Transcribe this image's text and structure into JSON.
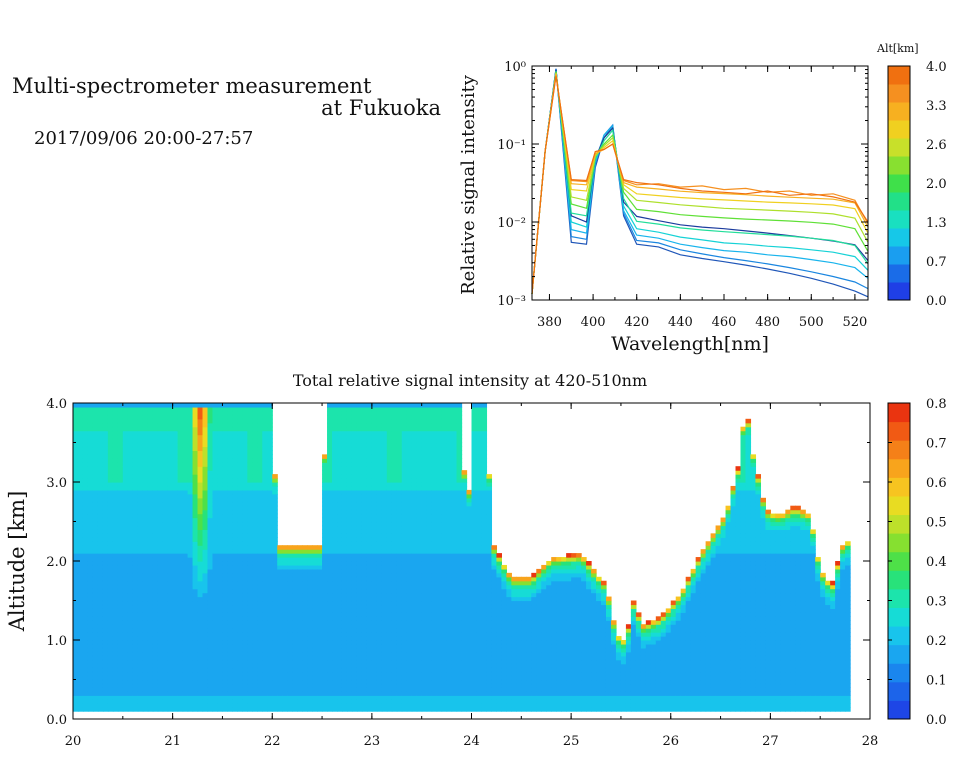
{
  "header": {
    "title_line1": "Multi-spectrometer measurement",
    "title_line2": "at Fukuoka",
    "datetime": "2017/09/06 20:00-27:57"
  },
  "chart_data": [
    {
      "type": "line",
      "title": "",
      "xlabel": "Wavelength[nm]",
      "ylabel": "Relative signal intensity",
      "xlim": [
        372,
        526
      ],
      "ylim": [
        0.001,
        1
      ],
      "yscale": "log",
      "xticks": [
        380,
        400,
        420,
        440,
        460,
        480,
        500,
        520
      ],
      "yticks": [
        {
          "value": 0.001,
          "label": "10⁻³"
        },
        {
          "value": 0.01,
          "label": "10⁻²"
        },
        {
          "value": 0.1,
          "label": "10⁻¹"
        },
        {
          "value": 1,
          "label": "10⁰"
        }
      ],
      "colorbar": {
        "label": "Alt[km]",
        "ticks": [
          "0.0",
          "0.7",
          "1.3",
          "2.0",
          "2.6",
          "3.3",
          "4.0"
        ],
        "colors": [
          "#1f3fe6",
          "#1a6ce8",
          "#1a9ef0",
          "#16c8e8",
          "#19e0c0",
          "#22e088",
          "#3fe04a",
          "#88e030",
          "#c8e02a",
          "#f0d020",
          "#f7b020",
          "#f59020",
          "#f07010"
        ]
      },
      "x": [
        372,
        378,
        383,
        390,
        397,
        401,
        405,
        409,
        414,
        420,
        430,
        440,
        450,
        460,
        470,
        480,
        490,
        500,
        510,
        520,
        526
      ],
      "series": [
        {
          "color": "#1f56b8",
          "values": [
            0.0012,
            0.08,
            0.92,
            0.0055,
            0.0052,
            0.05,
            0.12,
            0.17,
            0.012,
            0.0052,
            0.0048,
            0.0038,
            0.0034,
            0.0031,
            0.0028,
            0.0025,
            0.0022,
            0.0019,
            0.0016,
            0.0013,
            0.0011
          ]
        },
        {
          "color": "#1a86e0",
          "values": [
            0.0012,
            0.08,
            0.92,
            0.0065,
            0.006,
            0.055,
            0.13,
            0.175,
            0.013,
            0.0058,
            0.0054,
            0.0044,
            0.0039,
            0.0035,
            0.0032,
            0.0029,
            0.0026,
            0.0023,
            0.002,
            0.0017,
            0.0014
          ]
        },
        {
          "color": "#19b4ec",
          "values": [
            0.0012,
            0.08,
            0.9,
            0.008,
            0.0072,
            0.06,
            0.13,
            0.17,
            0.014,
            0.0068,
            0.0062,
            0.0052,
            0.0047,
            0.0043,
            0.0041,
            0.0038,
            0.0036,
            0.0033,
            0.003,
            0.0026,
            0.0019
          ]
        },
        {
          "color": "#16d2d6",
          "values": [
            0.0012,
            0.08,
            0.88,
            0.01,
            0.0086,
            0.06,
            0.12,
            0.16,
            0.016,
            0.0082,
            0.0074,
            0.0064,
            0.0059,
            0.0054,
            0.0052,
            0.0049,
            0.0047,
            0.0044,
            0.0041,
            0.0036,
            0.0024
          ]
        },
        {
          "color": "#1c3c9e",
          "values": [
            0.0012,
            0.08,
            0.9,
            0.012,
            0.01,
            0.065,
            0.12,
            0.16,
            0.018,
            0.0118,
            0.0104,
            0.0092,
            0.0086,
            0.0082,
            0.0077,
            0.0072,
            0.0067,
            0.0062,
            0.0057,
            0.0051,
            0.0032
          ]
        },
        {
          "color": "#22de9a",
          "values": [
            0.0012,
            0.08,
            0.86,
            0.013,
            0.012,
            0.065,
            0.11,
            0.15,
            0.02,
            0.0102,
            0.0094,
            0.0084,
            0.0079,
            0.0075,
            0.0072,
            0.0069,
            0.0066,
            0.0062,
            0.0058,
            0.005,
            0.0029
          ]
        },
        {
          "color": "#5fe036",
          "values": [
            0.0012,
            0.08,
            0.84,
            0.017,
            0.015,
            0.07,
            0.1,
            0.13,
            0.024,
            0.0145,
            0.0136,
            0.0124,
            0.0118,
            0.0113,
            0.0109,
            0.0106,
            0.0103,
            0.0099,
            0.0094,
            0.0082,
            0.0042
          ]
        },
        {
          "color": "#aee02c",
          "values": [
            0.0012,
            0.08,
            0.82,
            0.021,
            0.019,
            0.07,
            0.095,
            0.12,
            0.027,
            0.019,
            0.0178,
            0.0166,
            0.0158,
            0.015,
            0.0146,
            0.0142,
            0.0138,
            0.0133,
            0.0127,
            0.0112,
            0.0055
          ]
        },
        {
          "color": "#f0d020",
          "values": [
            0.0012,
            0.08,
            0.8,
            0.026,
            0.025,
            0.075,
            0.09,
            0.11,
            0.03,
            0.023,
            0.0218,
            0.0206,
            0.0198,
            0.0192,
            0.0186,
            0.018,
            0.0176,
            0.0171,
            0.0165,
            0.0148,
            0.0072
          ]
        },
        {
          "color": "#f7b020",
          "values": [
            0.0012,
            0.08,
            0.78,
            0.031,
            0.03,
            0.075,
            0.085,
            0.1,
            0.032,
            0.028,
            0.0265,
            0.0248,
            0.0238,
            0.0231,
            0.0224,
            0.0215,
            0.0208,
            0.0202,
            0.0196,
            0.0176,
            0.0086
          ]
        },
        {
          "color": "#f59020",
          "values": [
            0.0012,
            0.08,
            0.76,
            0.034,
            0.033,
            0.08,
            0.085,
            0.1,
            0.034,
            0.03,
            0.031,
            0.028,
            0.029,
            0.026,
            0.027,
            0.024,
            0.025,
            0.022,
            0.023,
            0.019,
            0.0095
          ]
        },
        {
          "color": "#f07010",
          "values": [
            0.0012,
            0.08,
            0.74,
            0.035,
            0.034,
            0.08,
            0.085,
            0.1,
            0.035,
            0.032,
            0.03,
            0.027,
            0.025,
            0.024,
            0.023,
            0.025,
            0.022,
            0.023,
            0.021,
            0.018,
            0.01
          ]
        }
      ]
    },
    {
      "type": "heatmap",
      "title": "Total relative signal intensity at 420-510nm",
      "xlabel": "",
      "ylabel": "Altitude [km]",
      "xlim": [
        20,
        28
      ],
      "ylim": [
        0,
        4
      ],
      "xticks": [
        "20",
        "21",
        "22",
        "23",
        "24",
        "25",
        "26",
        "27",
        "28"
      ],
      "yticks": [
        "0.0",
        "1.0",
        "2.0",
        "3.0",
        "4.0"
      ],
      "colorbar": {
        "ticks": [
          "0.0",
          "0.1",
          "0.2",
          "0.3",
          "0.4",
          "0.5",
          "0.6",
          "0.7",
          "0.8"
        ],
        "range": [
          0,
          0.8
        ],
        "colors": [
          "#1e46e6",
          "#1c64ea",
          "#1a86ee",
          "#1aa6f0",
          "#18c4ec",
          "#16dcd6",
          "#1ce4ac",
          "#28e27a",
          "#4ee048",
          "#86e030",
          "#bde02a",
          "#e8dc22",
          "#f7c420",
          "#f8a41c",
          "#f58018",
          "#f15a14",
          "#ea3410"
        ]
      },
      "data_end_hour": 27.8,
      "saturation_boundary": [
        [
          20.0,
          4.0
        ],
        [
          21.0,
          4.0
        ],
        [
          22.0,
          4.0
        ],
        [
          22.05,
          2.2
        ],
        [
          22.48,
          2.2
        ],
        [
          22.55,
          4.0
        ],
        [
          23.9,
          4.0
        ],
        [
          23.95,
          2.3
        ],
        [
          24.02,
          4.0
        ],
        [
          24.15,
          4.0
        ],
        [
          24.2,
          2.25
        ],
        [
          24.4,
          1.8
        ],
        [
          24.6,
          1.8
        ],
        [
          24.8,
          2.05
        ],
        [
          25.1,
          2.1
        ],
        [
          25.35,
          1.7
        ],
        [
          25.45,
          1.1
        ],
        [
          25.55,
          1.0
        ],
        [
          25.62,
          1.5
        ],
        [
          25.72,
          1.2
        ],
        [
          25.9,
          1.3
        ],
        [
          26.1,
          1.6
        ],
        [
          26.3,
          2.1
        ],
        [
          26.55,
          2.6
        ],
        [
          26.68,
          3.2
        ],
        [
          26.75,
          4.0
        ],
        [
          26.82,
          3.4
        ],
        [
          26.95,
          2.65
        ],
        [
          27.1,
          2.6
        ],
        [
          27.25,
          2.7
        ],
        [
          27.4,
          2.6
        ],
        [
          27.5,
          1.9
        ],
        [
          27.62,
          1.7
        ],
        [
          27.72,
          2.2
        ],
        [
          27.8,
          2.3
        ]
      ]
    }
  ]
}
